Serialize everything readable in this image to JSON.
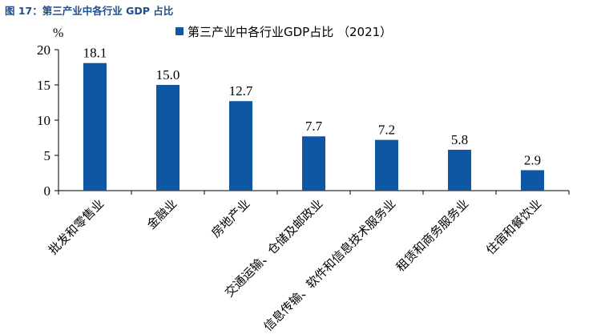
{
  "figure_title": "图 17：第三产业中各行业 GDP 占比",
  "chart_data": {
    "type": "bar",
    "categories": [
      "批发和零售业",
      "金融业",
      "房地产业",
      "交通运输、仓储及邮政业",
      "信息传输、软件和信息技术服务业",
      "租赁和商务服务业",
      "住宿和餐饮业"
    ],
    "series": [
      {
        "name": "第三产业中各行业GDP占比 （2021）",
        "values": [
          18.1,
          15.0,
          12.7,
          7.7,
          7.2,
          5.8,
          2.9
        ],
        "color": "#0e57a5"
      }
    ],
    "data_labels": [
      "18.1",
      "15.0",
      "12.7",
      "7.7",
      "7.2",
      "5.8",
      "2.9"
    ],
    "ylabel": "%",
    "ylim": [
      0,
      20
    ],
    "yticks": [
      0,
      5,
      10,
      15,
      20
    ],
    "grid": false,
    "legend_position": "top"
  }
}
